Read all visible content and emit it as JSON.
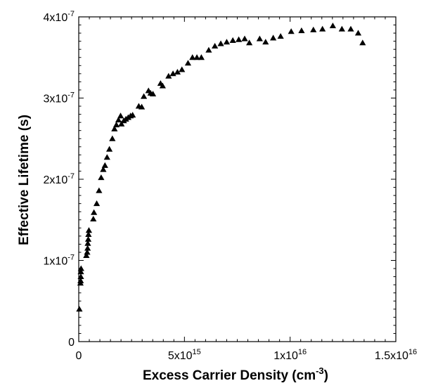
{
  "chart_data": {
    "type": "scatter",
    "xlabel": "Excess Carrier Density (cm",
    "xlabel_sup": "-3",
    "xlabel_end": ")",
    "ylabel": "Effective Lifetime (s)",
    "xlim": [
      0,
      1.5e+16
    ],
    "ylim": [
      0,
      4e-07
    ],
    "x_ticks": [
      {
        "value": 0,
        "base": "0",
        "exp": ""
      },
      {
        "value": 5000000000000000.0,
        "base": "5x10",
        "exp": "15"
      },
      {
        "value": 1e+16,
        "base": "1x10",
        "exp": "16"
      },
      {
        "value": 1.5e+16,
        "base": "1.5x10",
        "exp": "16"
      }
    ],
    "y_ticks": [
      {
        "value": 0,
        "base": "0",
        "exp": ""
      },
      {
        "value": 1e-07,
        "base": "1x10",
        "exp": "-7"
      },
      {
        "value": 2e-07,
        "base": "2x10",
        "exp": "-7"
      },
      {
        "value": 3e-07,
        "base": "3x10",
        "exp": "-7"
      },
      {
        "value": 4e-07,
        "base": "4x10",
        "exp": "-7"
      }
    ],
    "marker": "filled-triangle",
    "color": "#000000",
    "grid": false,
    "series": [
      {
        "points": [
          [
            30000000000000.0,
            4e-08
          ],
          [
            80000000000000.0,
            7.2e-08
          ],
          [
            90000000000000.0,
            7.5e-08
          ],
          [
            100000000000000.0,
            8e-08
          ],
          [
            100000000000000.0,
            8.6e-08
          ],
          [
            110000000000000.0,
            9e-08
          ],
          [
            360000000000000.0,
            1.06e-07
          ],
          [
            400000000000000.0,
            1.1e-07
          ],
          [
            420000000000000.0,
            1.15e-07
          ],
          [
            430000000000000.0,
            1.21e-07
          ],
          [
            450000000000000.0,
            1.26e-07
          ],
          [
            460000000000000.0,
            1.32e-07
          ],
          [
            480000000000000.0,
            1.37e-07
          ],
          [
            690000000000000.0,
            1.51e-07
          ],
          [
            720000000000000.0,
            1.59e-07
          ],
          [
            850000000000000.0,
            1.7e-07
          ],
          [
            960000000000000.0,
            1.86e-07
          ],
          [
            1060000000000000.0,
            2.02e-07
          ],
          [
            1160000000000000.0,
            2.12e-07
          ],
          [
            1240000000000000.0,
            2.17e-07
          ],
          [
            1340000000000000.0,
            2.27e-07
          ],
          [
            1450000000000000.0,
            2.37e-07
          ],
          [
            1590000000000000.0,
            2.5e-07
          ],
          [
            1690000000000000.0,
            2.62e-07
          ],
          [
            1780000000000000.0,
            2.67e-07
          ],
          [
            1880000000000000.0,
            2.73e-07
          ],
          [
            1980000000000000.0,
            2.78e-07
          ],
          [
            2020000000000000.0,
            2.68e-07
          ],
          [
            2130000000000000.0,
            2.72e-07
          ],
          [
            2230000000000000.0,
            2.74e-07
          ],
          [
            2340000000000000.0,
            2.76e-07
          ],
          [
            2450000000000000.0,
            2.78e-07
          ],
          [
            2550000000000000.0,
            2.79e-07
          ],
          [
            2840000000000000.0,
            2.9e-07
          ],
          [
            2980000000000000.0,
            2.89e-07
          ],
          [
            3080000000000000.0,
            3.02e-07
          ],
          [
            3300000000000000.0,
            3.09e-07
          ],
          [
            3400000000000000.0,
            3.06e-07
          ],
          [
            3510000000000000.0,
            3.05e-07
          ],
          [
            3870000000000000.0,
            3.18e-07
          ],
          [
            3970000000000000.0,
            3.15e-07
          ],
          [
            4250000000000000.0,
            3.27e-07
          ],
          [
            4460000000000000.0,
            3.3e-07
          ],
          [
            4670000000000000.0,
            3.32e-07
          ],
          [
            4880000000000000.0,
            3.35e-07
          ],
          [
            5170000000000000.0,
            3.43e-07
          ],
          [
            5380000000000000.0,
            3.5e-07
          ],
          [
            5590000000000000.0,
            3.5e-07
          ],
          [
            5800000000000000.0,
            3.5e-07
          ],
          [
            6150000000000000.0,
            3.59e-07
          ],
          [
            6440000000000000.0,
            3.64e-07
          ],
          [
            6720000000000000.0,
            3.67e-07
          ],
          [
            7000000000000000.0,
            3.69e-07
          ],
          [
            7290000000000000.0,
            3.71e-07
          ],
          [
            7570000000000000.0,
            3.72e-07
          ],
          [
            7850000000000000.0,
            3.73e-07
          ],
          [
            8070000000000000.0,
            3.68e-07
          ],
          [
            8560000000000000.0,
            3.73e-07
          ],
          [
            8840000000000000.0,
            3.69e-07
          ],
          [
            9200000000000000.0,
            3.74e-07
          ],
          [
            9550000000000000.0,
            3.76e-07
          ],
          [
            1.005e+16,
            3.82e-07
          ],
          [
            1.054e+16,
            3.83e-07
          ],
          [
            1.11e+16,
            3.84e-07
          ],
          [
            1.153e+16,
            3.85e-07
          ],
          [
            1.202e+16,
            3.89e-07
          ],
          [
            1.245e+16,
            3.85e-07
          ],
          [
            1.287e+16,
            3.85e-07
          ],
          [
            1.322e+16,
            3.8e-07
          ],
          [
            1.343e+16,
            3.68e-07
          ]
        ]
      }
    ]
  }
}
